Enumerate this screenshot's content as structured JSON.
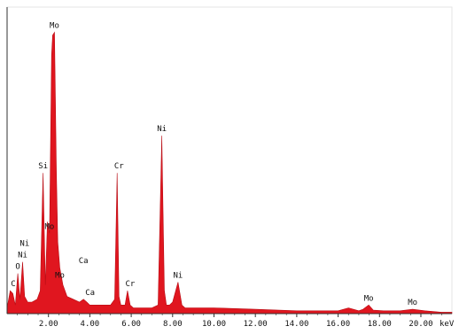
{
  "chart_data": {
    "type": "area",
    "xlabel": "keV",
    "xlim": [
      0,
      21.5
    ],
    "ylim": [
      0,
      100
    ],
    "grid": false,
    "legend": "none",
    "fill_color": "#e0161f",
    "axis_color": "#333333",
    "x_ticks": [
      "2.00",
      "4.00",
      "6.00",
      "8.00",
      "10.00",
      "12.00",
      "14.00",
      "16.00",
      "18.00",
      "20.00"
    ],
    "spectrum": {
      "x": [
        0,
        0.15,
        0.28,
        0.4,
        0.52,
        0.62,
        0.75,
        0.85,
        1.0,
        1.2,
        1.45,
        1.6,
        1.74,
        1.85,
        1.95,
        2.05,
        2.15,
        2.2,
        2.29,
        2.38,
        2.45,
        2.55,
        2.7,
        2.9,
        3.2,
        3.5,
        3.69,
        3.85,
        4.0,
        4.5,
        5.0,
        5.2,
        5.32,
        5.41,
        5.5,
        5.7,
        5.82,
        5.95,
        6.1,
        6.5,
        7.0,
        7.3,
        7.48,
        7.6,
        7.7,
        7.85,
        8.0,
        8.26,
        8.45,
        8.6,
        9.0,
        10.0,
        12.0,
        14.0,
        16.0,
        16.5,
        17.0,
        17.2,
        17.48,
        17.7,
        18.2,
        19.0,
        19.6,
        20.2,
        21.0,
        21.5
      ],
      "y": [
        2,
        8,
        7,
        3,
        14,
        5,
        18,
        6,
        4,
        4,
        5,
        8,
        49,
        10,
        32,
        28,
        90,
        97,
        98,
        50,
        25,
        16,
        10,
        6,
        5,
        4,
        5,
        4,
        3,
        3,
        3,
        5,
        49,
        6,
        3,
        3,
        8,
        3,
        2,
        2,
        2,
        3,
        62,
        8,
        3,
        3,
        4,
        11,
        3,
        2,
        2,
        2,
        1.5,
        1,
        1,
        2,
        1,
        1.5,
        3,
        1.2,
        1,
        1,
        1.5,
        1,
        0.5,
        0.5
      ]
    },
    "peaks": [
      {
        "label": "C",
        "x": 0.3,
        "y": 8
      },
      {
        "label": "O",
        "x": 0.52,
        "y": 14
      },
      {
        "label": "Ni",
        "x": 0.75,
        "y": 18
      },
      {
        "label": "Ni",
        "x": 0.85,
        "y": 22
      },
      {
        "label": "Si",
        "x": 1.74,
        "y": 49
      },
      {
        "label": "Mo",
        "x": 2.05,
        "y": 28
      },
      {
        "label": "Mo",
        "x": 2.29,
        "y": 98
      },
      {
        "label": "Mo",
        "x": 2.55,
        "y": 11
      },
      {
        "label": "Ca",
        "x": 3.69,
        "y": 16
      },
      {
        "label": "Ca",
        "x": 4.01,
        "y": 5
      },
      {
        "label": "Cr",
        "x": 5.41,
        "y": 49
      },
      {
        "label": "Cr",
        "x": 5.95,
        "y": 8
      },
      {
        "label": "Ni",
        "x": 7.48,
        "y": 62
      },
      {
        "label": "Ni",
        "x": 8.26,
        "y": 11
      },
      {
        "label": "Mo",
        "x": 17.48,
        "y": 3
      },
      {
        "label": "Mo",
        "x": 19.6,
        "y": 1.5
      }
    ]
  }
}
